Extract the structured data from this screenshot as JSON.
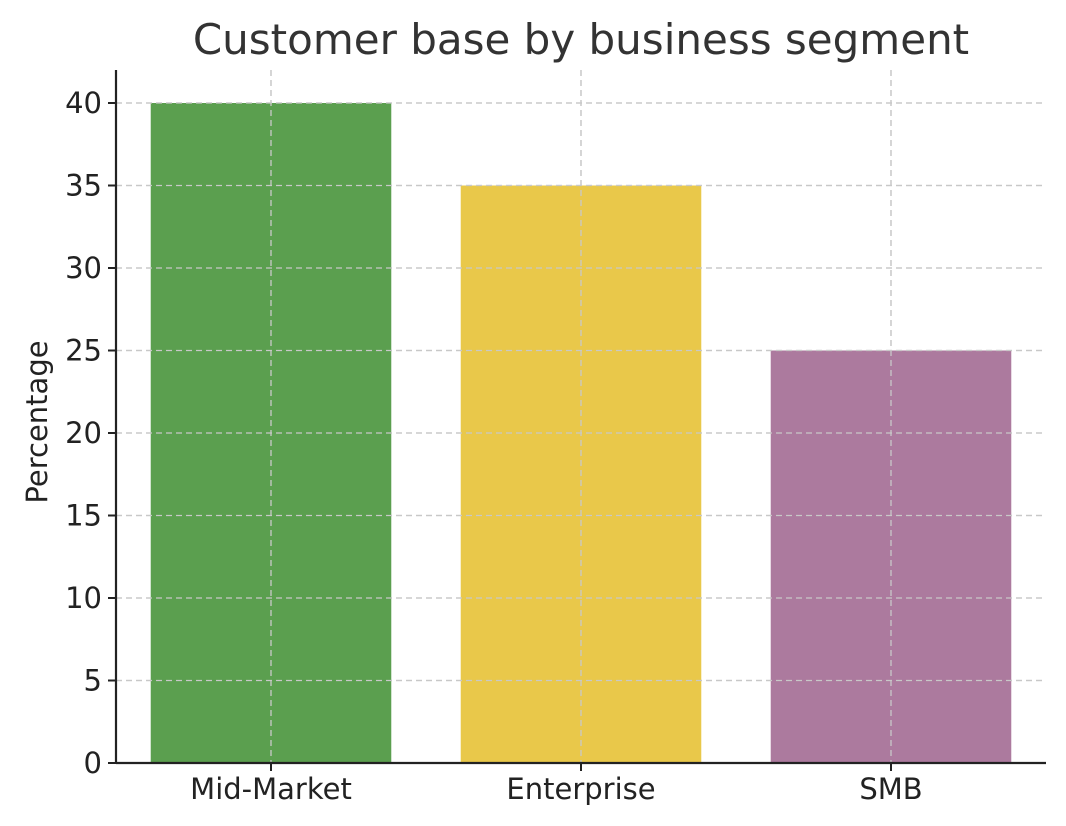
{
  "chart_data": {
    "type": "bar",
    "title": "Customer base by business segment",
    "xlabel": "",
    "ylabel": "Percentage",
    "categories": [
      "Mid-Market",
      "Enterprise",
      "SMB"
    ],
    "values": [
      40,
      35,
      25
    ],
    "colors": [
      "#5b9f4f",
      "#e9c84a",
      "#ac7a9e"
    ],
    "ylim": [
      0,
      42
    ],
    "yticks": [
      0,
      5,
      10,
      15,
      20,
      25,
      30,
      35,
      40
    ],
    "grid": true,
    "grid_color": "#c8c8c8",
    "legend": "none"
  }
}
